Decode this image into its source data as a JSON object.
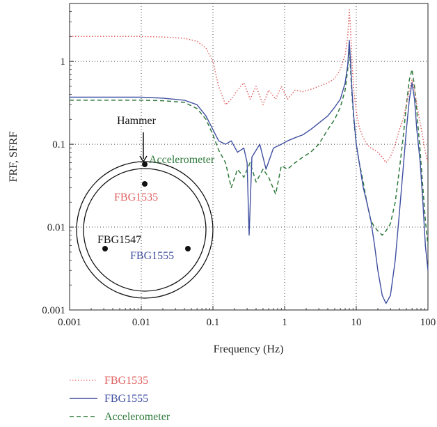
{
  "chart_data": {
    "type": "line",
    "title": "",
    "xlabel": "Frequency (Hz)",
    "ylabel": "FRF, SFRF",
    "xscale": "log",
    "yscale": "log",
    "xlim": [
      0.001,
      100
    ],
    "ylim": [
      0.001,
      5
    ],
    "grid": "dotted, at decades",
    "x_ticks": [
      "0.001",
      "0.01",
      "0.1",
      "1",
      "10",
      "100"
    ],
    "y_ticks": [
      "0.001",
      "0.01",
      "0.1",
      "1"
    ],
    "legend_position": "below",
    "series": [
      {
        "name": "FBG1535",
        "color": "#e06060",
        "style": "dotted",
        "x": [
          0.001,
          0.003,
          0.01,
          0.02,
          0.04,
          0.06,
          0.08,
          0.1,
          0.12,
          0.15,
          0.18,
          0.22,
          0.27,
          0.33,
          0.4,
          0.5,
          0.6,
          0.75,
          0.9,
          1.1,
          1.4,
          1.8,
          2.3,
          3,
          4,
          5,
          6,
          7,
          7.6,
          8,
          8.3,
          8.7,
          9.2,
          10,
          11,
          12.5,
          14,
          16,
          18,
          20,
          23,
          26,
          30,
          35,
          40,
          45,
          50,
          55,
          60,
          65,
          70,
          78,
          85,
          92,
          100
        ],
        "values": [
          2.0,
          2.0,
          2.0,
          1.97,
          1.9,
          1.75,
          1.45,
          1.0,
          0.5,
          0.3,
          0.35,
          0.45,
          0.55,
          0.35,
          0.5,
          0.3,
          0.45,
          0.35,
          0.5,
          0.35,
          0.45,
          0.43,
          0.46,
          0.5,
          0.55,
          0.62,
          0.8,
          1.2,
          2.0,
          4.2,
          2.5,
          1.0,
          0.45,
          0.25,
          0.16,
          0.12,
          0.1,
          0.09,
          0.085,
          0.08,
          0.07,
          0.06,
          0.07,
          0.1,
          0.15,
          0.2,
          0.3,
          0.45,
          0.6,
          0.45,
          0.3,
          0.18,
          0.12,
          0.08,
          0.06
        ]
      },
      {
        "name": "FBG1555",
        "color": "#3f4fa0",
        "style": "solid",
        "x": [
          0.001,
          0.003,
          0.01,
          0.02,
          0.04,
          0.06,
          0.08,
          0.1,
          0.12,
          0.15,
          0.18,
          0.22,
          0.27,
          0.3,
          0.32,
          0.35,
          0.45,
          0.55,
          0.7,
          0.9,
          1.1,
          1.4,
          1.8,
          2.3,
          3,
          4,
          5,
          6,
          7,
          7.6,
          8,
          8.3,
          8.7,
          9.2,
          10,
          11,
          12.5,
          14,
          16,
          18,
          20,
          23,
          26,
          30,
          35,
          40,
          45,
          50,
          55,
          60,
          65,
          70,
          78,
          85,
          92,
          100
        ],
        "values": [
          0.37,
          0.37,
          0.37,
          0.36,
          0.34,
          0.3,
          0.22,
          0.15,
          0.11,
          0.1,
          0.11,
          0.08,
          0.09,
          0.06,
          0.008,
          0.07,
          0.1,
          0.05,
          0.09,
          0.1,
          0.11,
          0.12,
          0.13,
          0.15,
          0.18,
          0.22,
          0.28,
          0.35,
          0.55,
          0.9,
          1.8,
          1.0,
          0.45,
          0.22,
          0.1,
          0.06,
          0.03,
          0.02,
          0.012,
          0.006,
          0.003,
          0.0015,
          0.0012,
          0.0015,
          0.004,
          0.015,
          0.05,
          0.15,
          0.35,
          0.55,
          0.35,
          0.15,
          0.06,
          0.02,
          0.006,
          0.003
        ]
      },
      {
        "name": "Accelerometer",
        "color": "#2f7a3c",
        "style": "dashed",
        "x": [
          0.001,
          0.003,
          0.01,
          0.02,
          0.04,
          0.06,
          0.08,
          0.1,
          0.12,
          0.15,
          0.18,
          0.22,
          0.27,
          0.33,
          0.4,
          0.5,
          0.6,
          0.75,
          0.9,
          1.1,
          1.4,
          1.8,
          2.3,
          3,
          4,
          5,
          6,
          7,
          7.6,
          8,
          8.3,
          8.7,
          9.2,
          10,
          11,
          12.5,
          14,
          16,
          18,
          20,
          23,
          26,
          30,
          35,
          40,
          45,
          50,
          55,
          60,
          65,
          70,
          78,
          85,
          92,
          100
        ],
        "values": [
          0.34,
          0.34,
          0.34,
          0.335,
          0.32,
          0.27,
          0.2,
          0.13,
          0.085,
          0.06,
          0.03,
          0.05,
          0.04,
          0.06,
          0.035,
          0.05,
          0.04,
          0.025,
          0.055,
          0.05,
          0.06,
          0.07,
          0.08,
          0.1,
          0.15,
          0.2,
          0.28,
          0.45,
          0.8,
          1.5,
          0.8,
          0.4,
          0.2,
          0.1,
          0.06,
          0.035,
          0.02,
          0.012,
          0.01,
          0.009,
          0.008,
          0.009,
          0.011,
          0.02,
          0.05,
          0.12,
          0.3,
          0.6,
          0.8,
          0.5,
          0.25,
          0.08,
          0.03,
          0.012,
          0.006
        ]
      }
    ]
  },
  "annotations": {
    "hammer": "Hammer",
    "accelerometer": "Accelerometer",
    "fbg1535": "FBG1535",
    "fbg1547": "FBG1547",
    "fbg1555": "FBG1555"
  }
}
